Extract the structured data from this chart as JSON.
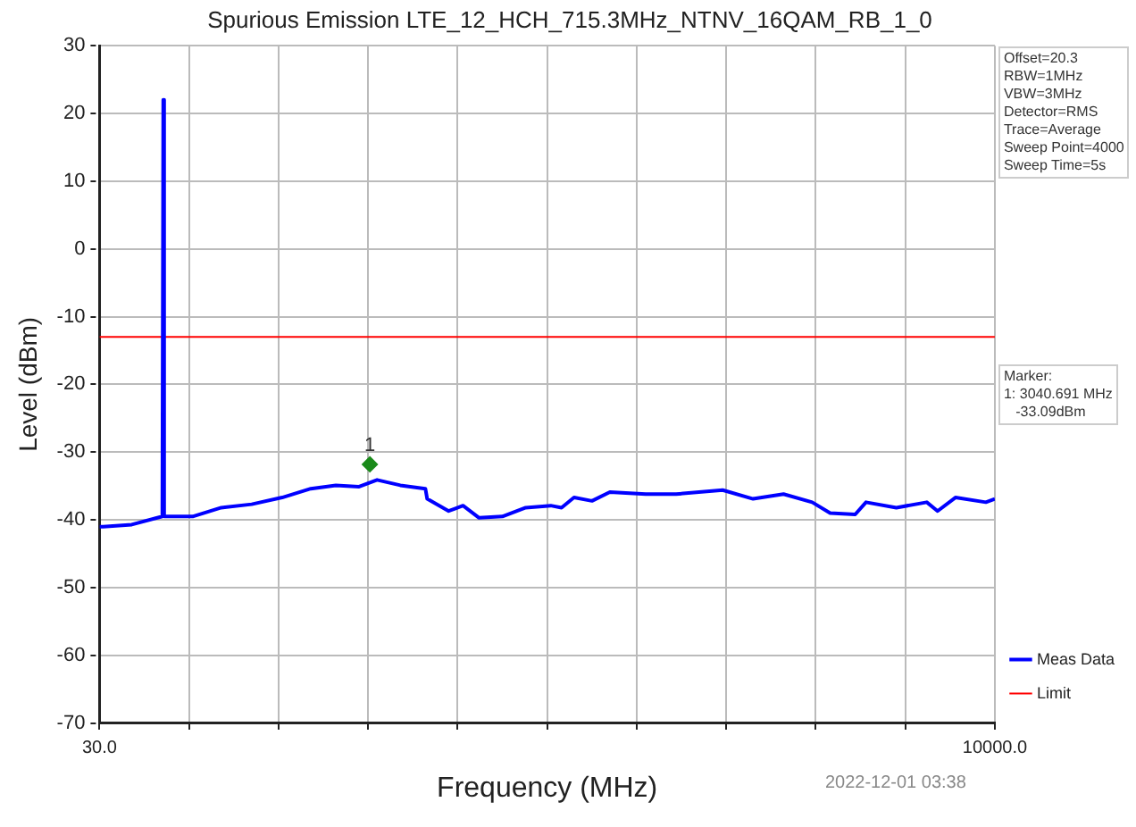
{
  "chart_data": {
    "type": "line",
    "title": "Spurious Emission LTE_12_HCH_715.3MHz_NTNV_16QAM_RB_1_0",
    "xlabel": "Frequency (MHz)",
    "ylabel": "Level (dBm)",
    "xlim": [
      30,
      10000
    ],
    "xticks": [
      {
        "value": 30,
        "label": "30.0"
      },
      {
        "value": 1027,
        "label": null
      },
      {
        "value": 2024,
        "label": null
      },
      {
        "value": 3021,
        "label": null
      },
      {
        "value": 4018,
        "label": null
      },
      {
        "value": 5015,
        "label": null
      },
      {
        "value": 6012,
        "label": null
      },
      {
        "value": 7009,
        "label": null
      },
      {
        "value": 8006,
        "label": null
      },
      {
        "value": 9003,
        "label": null
      },
      {
        "value": 10000,
        "label": "10000.0"
      }
    ],
    "ylim": [
      -70,
      30
    ],
    "yticks": [
      -70,
      -60,
      -50,
      -40,
      -30,
      -20,
      -10,
      0,
      10,
      20,
      30
    ],
    "grid": true,
    "legend": "bottom right",
    "line_style": "solid",
    "marker": "none",
    "series": [
      {
        "name": "Meas Data",
        "color": "#0000ff",
        "x": [
          30,
          70,
          389,
          730,
          740,
          750,
          1067,
          1386,
          1725,
          2064,
          2383,
          2662,
          2921,
          3121,
          3380,
          3659,
          3679,
          3918,
          4078,
          4257,
          4516,
          4776,
          5055,
          5175,
          5314,
          5514,
          5713,
          6112,
          6451,
          6969,
          7308,
          7647,
          7966,
          8166,
          8445,
          8565,
          8903,
          9242,
          9362,
          9561,
          9900,
          10000
        ],
        "values": [
          -41.0,
          -41.0,
          -40.7,
          -39.5,
          22,
          -39.5,
          -39.5,
          -38.2,
          -37.7,
          -36.7,
          -35.4,
          -34.9,
          -35.1,
          -34.1,
          -34.9,
          -35.4,
          -36.9,
          -38.7,
          -37.9,
          -39.7,
          -39.5,
          -38.2,
          -37.9,
          -38.2,
          -36.7,
          -37.2,
          -35.9,
          -36.2,
          -36.2,
          -35.6,
          -36.9,
          -36.2,
          -37.4,
          -39.0,
          -39.2,
          -37.4,
          -38.2,
          -37.4,
          -38.7,
          -36.7,
          -37.4,
          -36.9
        ]
      },
      {
        "name": "Limit",
        "color": "#ff0000",
        "x": [
          30,
          10000
        ],
        "values": [
          -13,
          -13
        ]
      },
      {
        "type": "scatter",
        "marker": "diamond",
        "color": "#1a8a1a",
        "x": [
          3040.691
        ],
        "values": [
          -31.8
        ]
      }
    ],
    "annotations": [
      {
        "text": "1",
        "x": 3040.691,
        "y": -31.8
      },
      "Offset=20.3\nRBW=1MHz\nVBW=3MHz\nDetector=RMS\nTrace=Average\nSweep Point=4000\nSweep Time=5s",
      "Marker:\n1: 3040.691 MHz\n   -33.09dBm",
      "2022-12-01 03:38"
    ]
  }
}
